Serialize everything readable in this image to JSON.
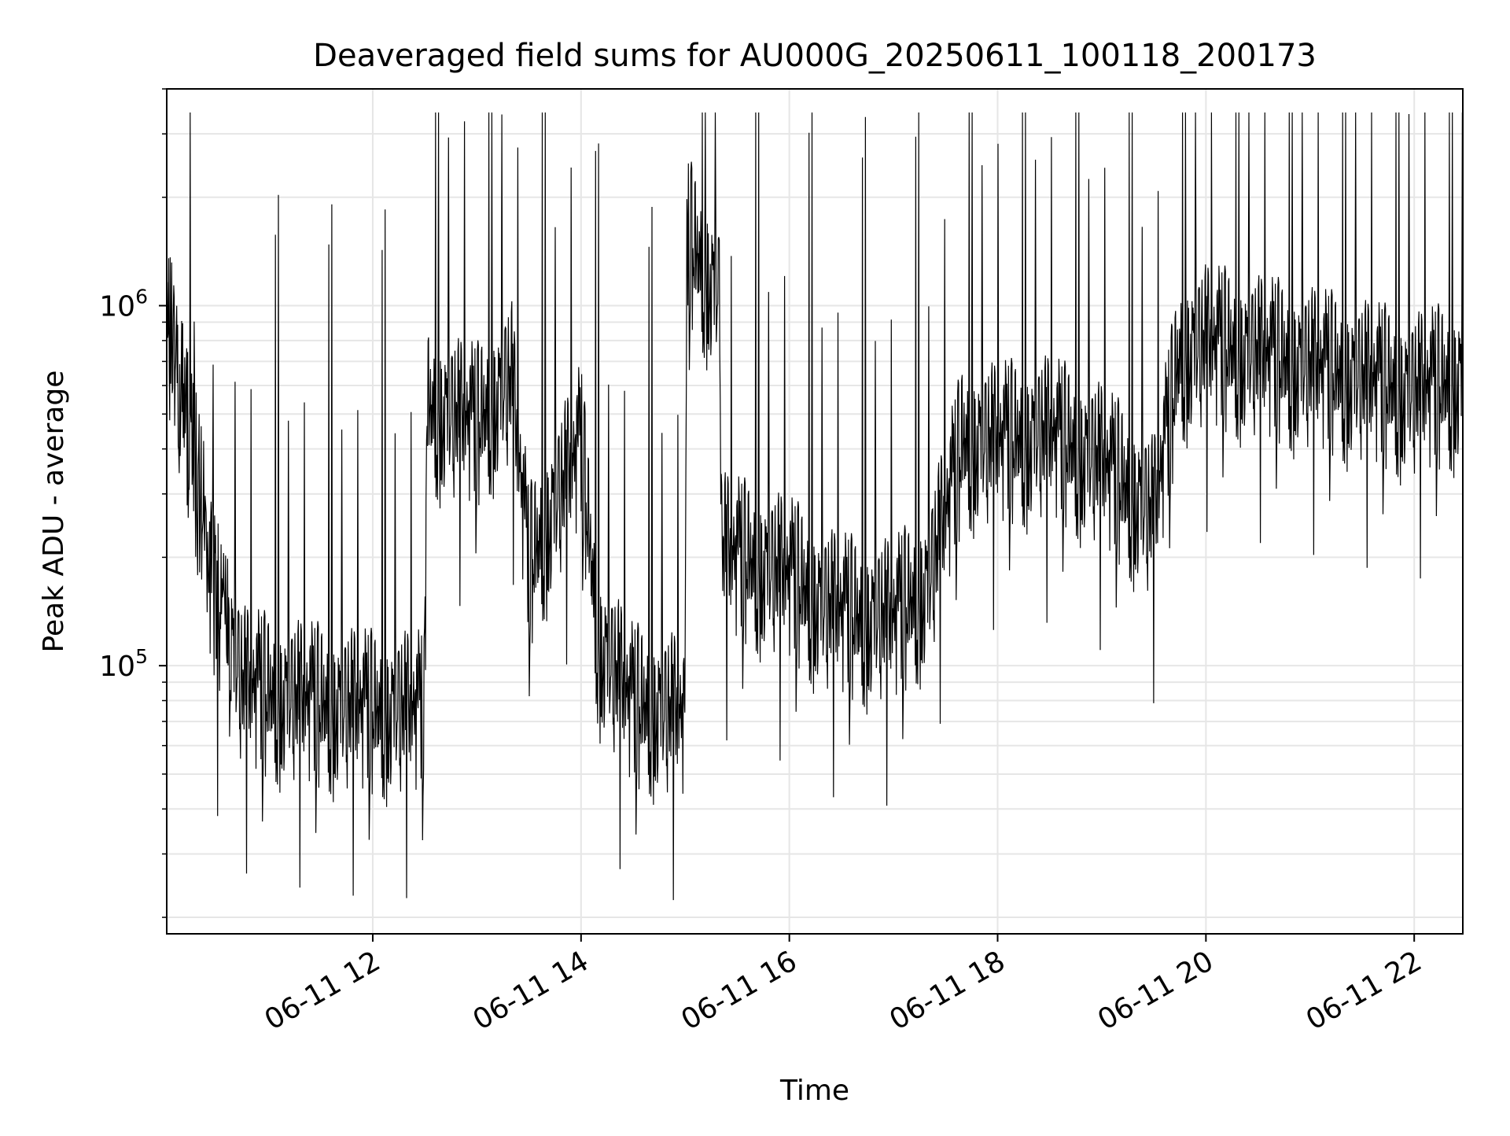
{
  "chart_data": {
    "type": "line",
    "title": "Deaveraged field sums for AU000G_20250611_100118_200173",
    "xlabel": "Time",
    "ylabel": "Peak ADU - average",
    "yscale": "log",
    "xlim": [
      "2025-06-11T10:01:18",
      "2025-06-11T22:28:00"
    ],
    "ylim": [
      18000,
      4000000
    ],
    "x_ticks": [
      {
        "t": "2025-06-11T12:00",
        "label": "06-11 12"
      },
      {
        "t": "2025-06-11T14:00",
        "label": "06-11 14"
      },
      {
        "t": "2025-06-11T16:00",
        "label": "06-11 16"
      },
      {
        "t": "2025-06-11T18:00",
        "label": "06-11 18"
      },
      {
        "t": "2025-06-11T20:00",
        "label": "06-11 20"
      },
      {
        "t": "2025-06-11T22:00",
        "label": "06-11 22"
      }
    ],
    "y_major_ticks": [
      {
        "value": 100000,
        "base": "10",
        "exp": "5"
      },
      {
        "value": 1000000,
        "base": "10",
        "exp": "6"
      }
    ],
    "grid": true,
    "grid_color": "#e6e6e6",
    "line_color": "#000000",
    "series": [
      {
        "time_points": [
          "2025-06-11T10:01:18",
          "2025-06-11T10:15",
          "2025-06-11T10:30",
          "2025-06-11T10:45",
          "2025-06-11T11:00",
          "2025-06-11T11:30",
          "2025-06-11T12:00",
          "2025-06-11T12:30",
          "2025-06-11T12:31",
          "2025-06-11T13:00",
          "2025-06-11T13:20",
          "2025-06-11T13:30",
          "2025-06-11T14:00",
          "2025-06-11T14:10",
          "2025-06-11T14:30",
          "2025-06-11T15:00",
          "2025-06-11T15:01",
          "2025-06-11T15:20",
          "2025-06-11T15:21",
          "2025-06-11T15:45",
          "2025-06-11T16:00",
          "2025-06-11T16:20",
          "2025-06-11T16:40",
          "2025-06-11T17:00",
          "2025-06-11T17:20",
          "2025-06-11T17:40",
          "2025-06-11T18:00",
          "2025-06-11T18:30",
          "2025-06-11T19:00",
          "2025-06-11T19:30",
          "2025-06-11T19:45",
          "2025-06-11T20:00",
          "2025-06-11T20:30",
          "2025-06-11T21:00",
          "2025-06-11T21:30",
          "2025-06-11T22:00",
          "2025-06-11T22:28"
        ],
        "typical_values": [
          900000,
          400000,
          150000,
          85000,
          80000,
          75000,
          72000,
          72000,
          500000,
          450000,
          600000,
          180000,
          400000,
          110000,
          75000,
          70000,
          1500000,
          1000000,
          200000,
          180000,
          170000,
          140000,
          130000,
          130000,
          160000,
          400000,
          400000,
          420000,
          350000,
          250000,
          700000,
          750000,
          700000,
          650000,
          600000,
          550000,
          600000
        ]
      }
    ]
  }
}
